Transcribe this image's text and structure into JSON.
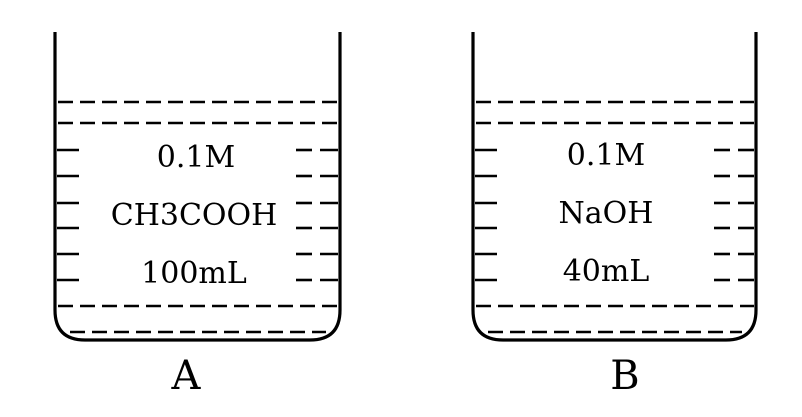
{
  "beakers": [
    {
      "label": "A",
      "concentration": "0.1M",
      "solute": "CH3COOH",
      "volume": "100mL"
    },
    {
      "label": "B",
      "concentration": "0.1M",
      "solute": "NaOH",
      "volume": "40mL"
    }
  ]
}
